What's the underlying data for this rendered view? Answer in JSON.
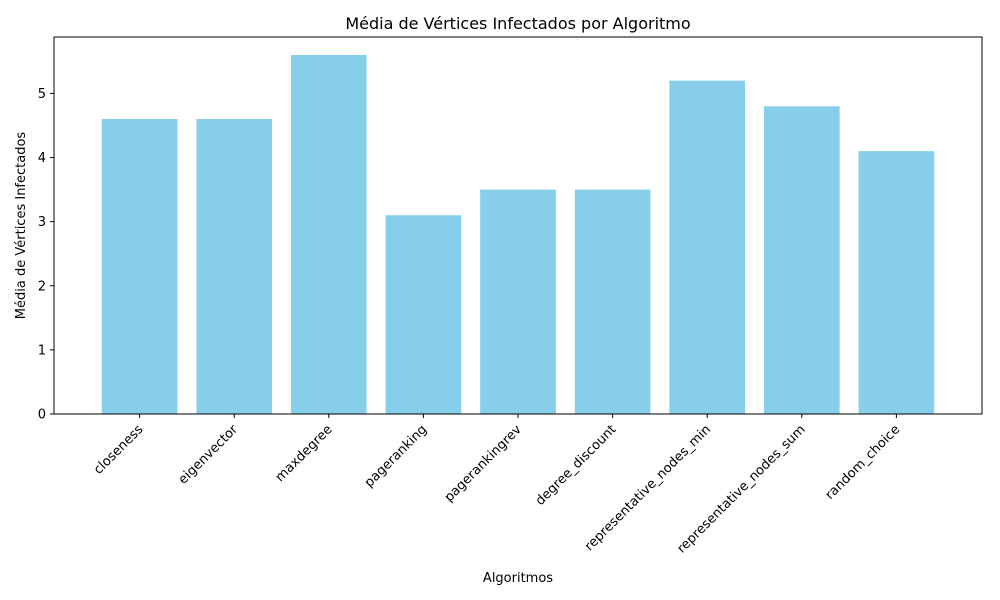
{
  "chart_data": {
    "type": "bar",
    "title": "Média de Vértices Infectados por Algoritmo",
    "xlabel": "Algoritmos",
    "ylabel": "Média de Vértices Infectados",
    "categories": [
      "closeness",
      "eigenvector",
      "maxdegree",
      "pageranking",
      "pagerankingrev",
      "degree_discount",
      "representative_nodes_min",
      "representative_nodes_sum",
      "random_choice"
    ],
    "values": [
      4.6,
      4.6,
      5.6,
      3.1,
      3.5,
      3.5,
      5.2,
      4.8,
      4.1
    ],
    "ylim": [
      0,
      5.88
    ],
    "yticks": [
      0,
      1,
      2,
      3,
      4,
      5
    ],
    "bar_color": "#87ceeb",
    "grid": false,
    "xtick_rotation": 45
  }
}
